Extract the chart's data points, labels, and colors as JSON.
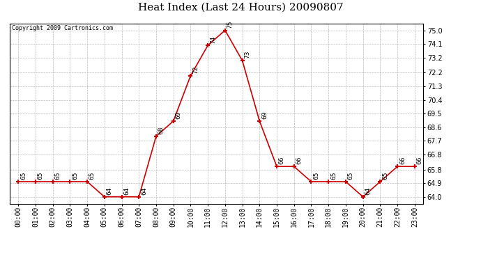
{
  "title": "Heat Index (Last 24 Hours) 20090807",
  "copyright": "Copyright 2009 Cartronics.com",
  "hours": [
    "00:00",
    "01:00",
    "02:00",
    "03:00",
    "04:00",
    "05:00",
    "06:00",
    "07:00",
    "08:00",
    "09:00",
    "10:00",
    "11:00",
    "12:00",
    "13:00",
    "14:00",
    "15:00",
    "16:00",
    "17:00",
    "18:00",
    "19:00",
    "20:00",
    "21:00",
    "22:00",
    "23:00"
  ],
  "values": [
    65,
    65,
    65,
    65,
    65,
    64,
    64,
    64,
    68,
    69,
    72,
    74,
    75,
    73,
    69,
    66,
    66,
    65,
    65,
    65,
    64,
    65,
    66,
    66
  ],
  "line_color": "#cc0000",
  "marker_color": "#cc0000",
  "background_color": "#ffffff",
  "grid_color": "#bbbbbb",
  "ylim_min": 63.55,
  "ylim_max": 75.45,
  "yticks": [
    64.0,
    64.9,
    65.8,
    66.8,
    67.7,
    68.6,
    69.5,
    70.4,
    71.3,
    72.2,
    73.2,
    74.1,
    75.0
  ],
  "title_fontsize": 11,
  "annotation_fontsize": 6.5,
  "copyright_fontsize": 6,
  "tick_fontsize": 7
}
